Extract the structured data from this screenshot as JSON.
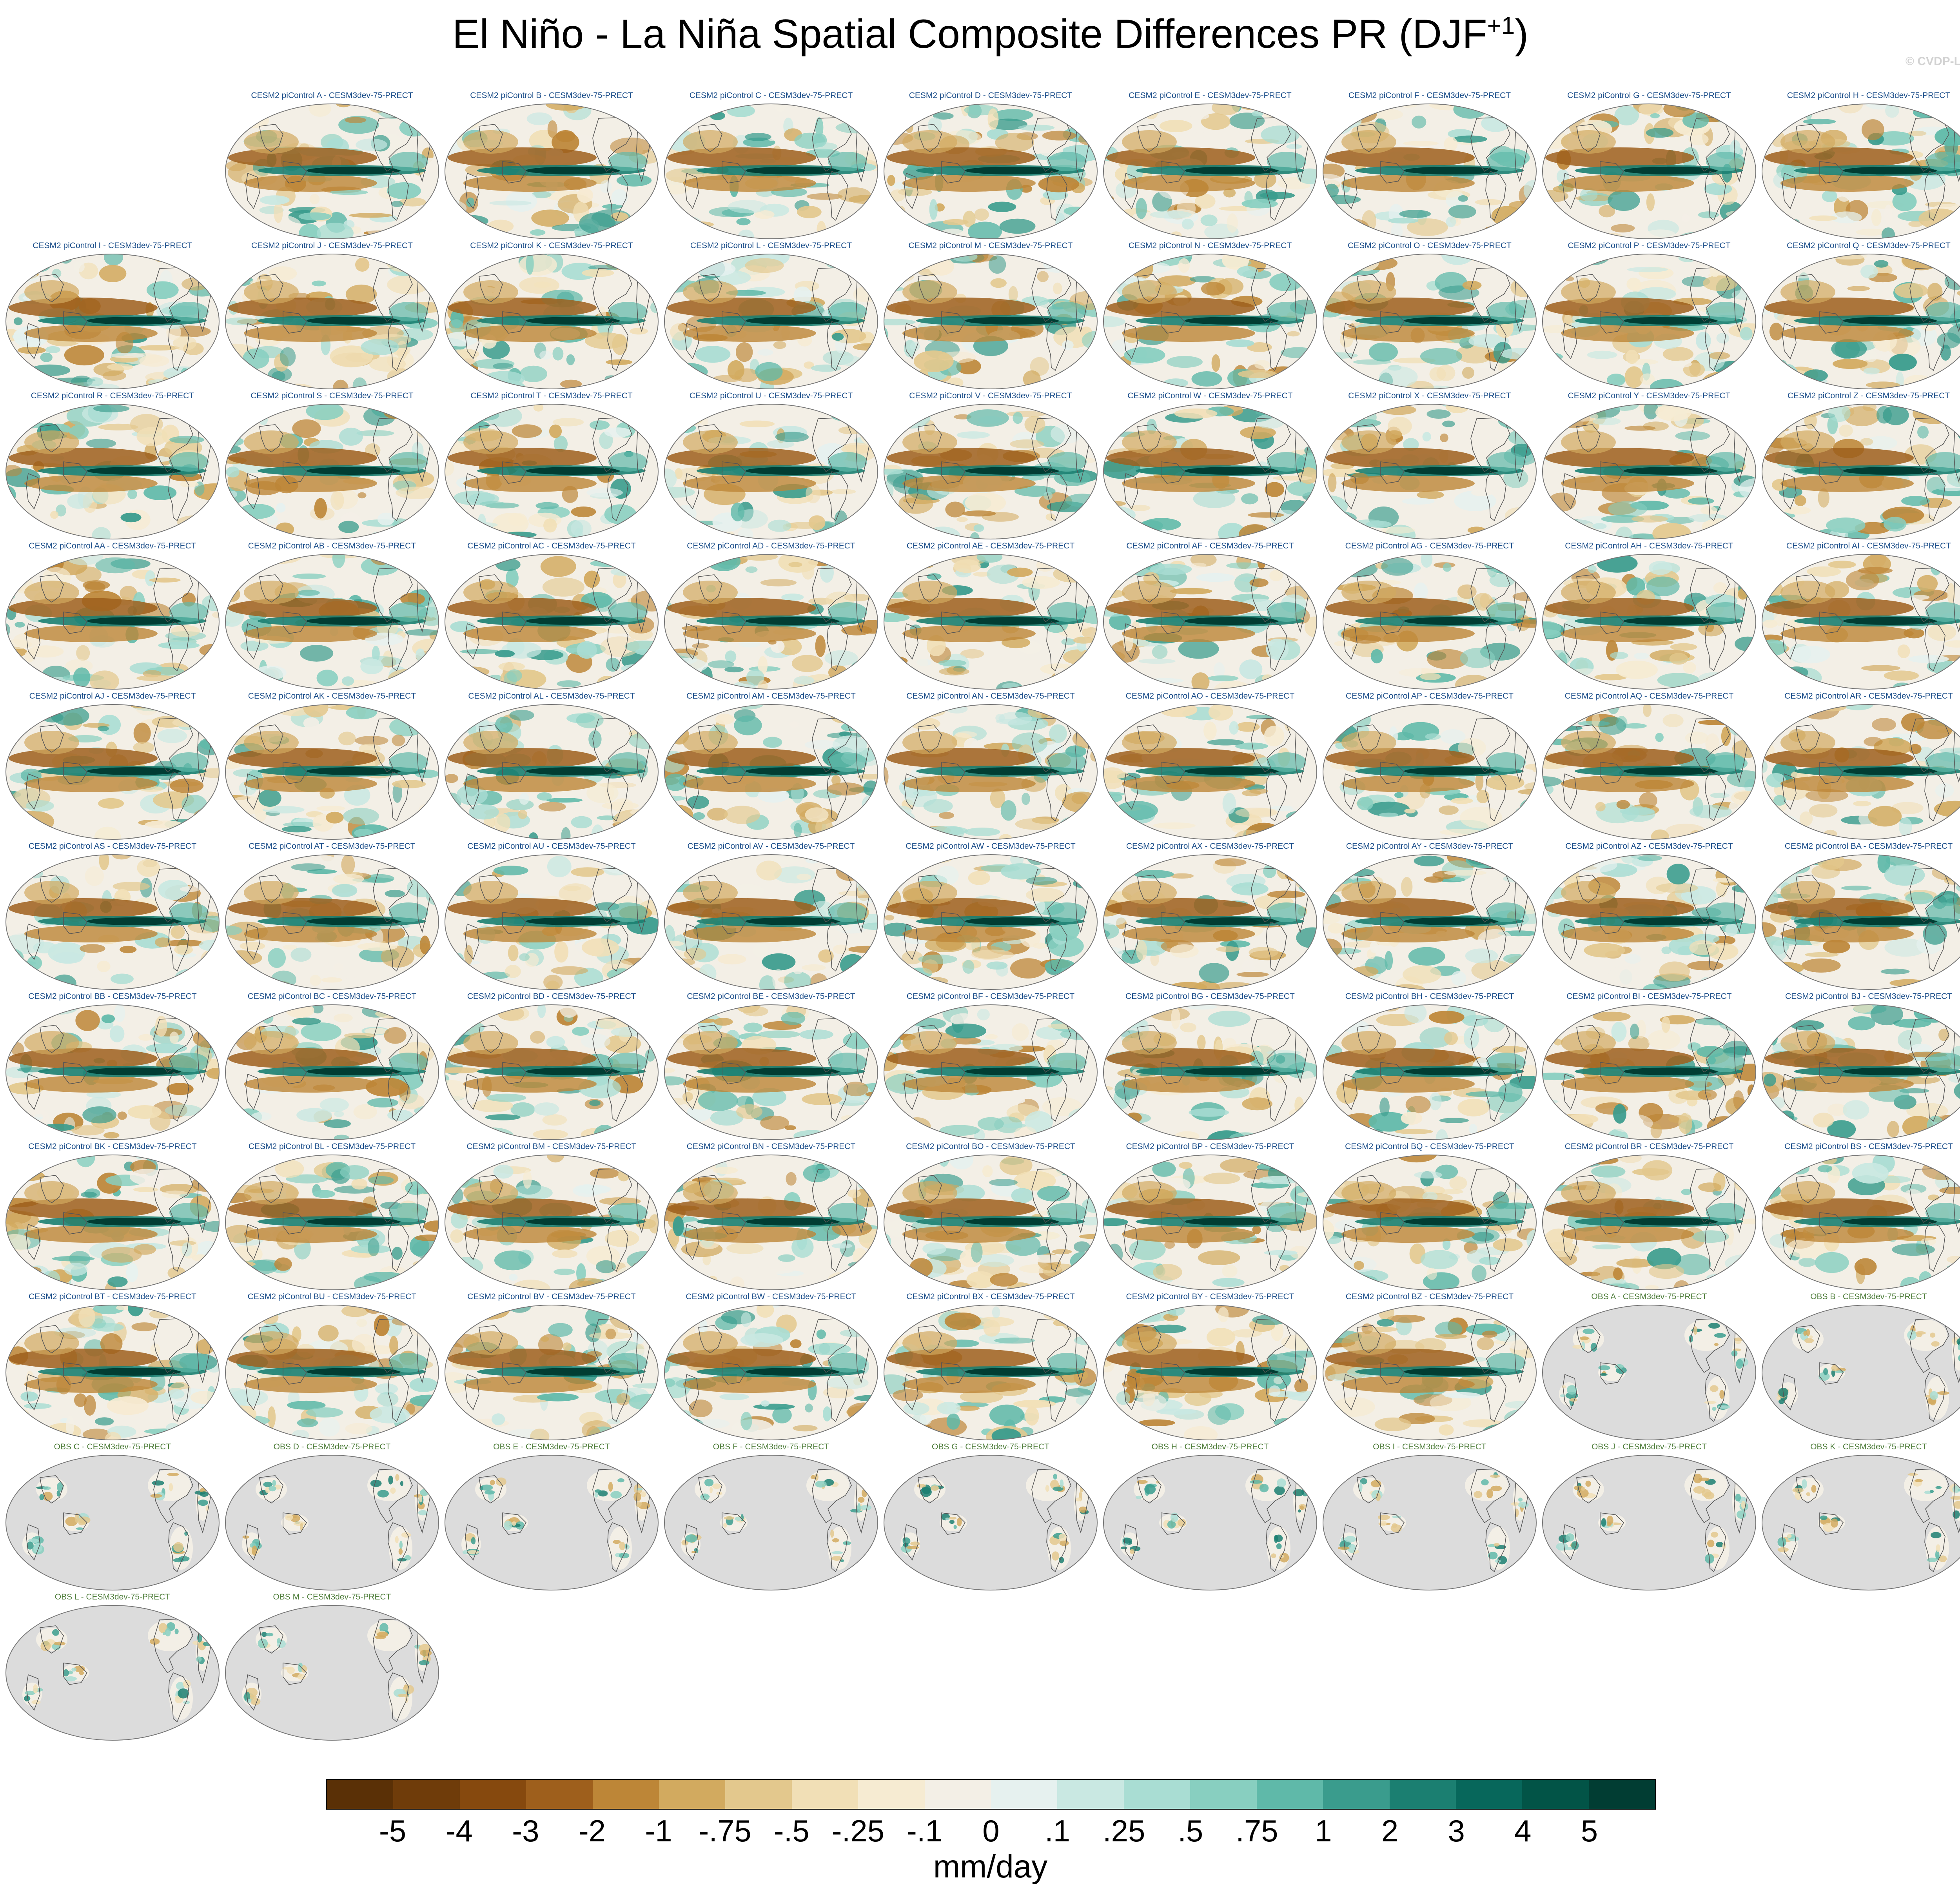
{
  "title_main": "El Niño - La Niña Spatial Composite Differences PR (DJF",
  "title_sup": "+1",
  "title_end": ")",
  "copyright": "© CVDP-LE",
  "panels": [
    {
      "label": "CESM2 piControl A - CESM3dev-75-PRECT",
      "kind": "model"
    },
    {
      "label": "CESM2 piControl B - CESM3dev-75-PRECT",
      "kind": "model"
    },
    {
      "label": "CESM2 piControl C - CESM3dev-75-PRECT",
      "kind": "model"
    },
    {
      "label": "CESM2 piControl D - CESM3dev-75-PRECT",
      "kind": "model"
    },
    {
      "label": "CESM2 piControl E - CESM3dev-75-PRECT",
      "kind": "model"
    },
    {
      "label": "CESM2 piControl F - CESM3dev-75-PRECT",
      "kind": "model"
    },
    {
      "label": "CESM2 piControl G - CESM3dev-75-PRECT",
      "kind": "model"
    },
    {
      "label": "CESM2 piControl H - CESM3dev-75-PRECT",
      "kind": "model"
    },
    {
      "label": "CESM2 piControl I - CESM3dev-75-PRECT",
      "kind": "model"
    },
    {
      "label": "CESM2 piControl J - CESM3dev-75-PRECT",
      "kind": "model"
    },
    {
      "label": "CESM2 piControl K - CESM3dev-75-PRECT",
      "kind": "model"
    },
    {
      "label": "CESM2 piControl L - CESM3dev-75-PRECT",
      "kind": "model"
    },
    {
      "label": "CESM2 piControl M - CESM3dev-75-PRECT",
      "kind": "model"
    },
    {
      "label": "CESM2 piControl N - CESM3dev-75-PRECT",
      "kind": "model"
    },
    {
      "label": "CESM2 piControl O - CESM3dev-75-PRECT",
      "kind": "model"
    },
    {
      "label": "CESM2 piControl P - CESM3dev-75-PRECT",
      "kind": "model"
    },
    {
      "label": "CESM2 piControl Q - CESM3dev-75-PRECT",
      "kind": "model"
    },
    {
      "label": "CESM2 piControl R - CESM3dev-75-PRECT",
      "kind": "model"
    },
    {
      "label": "CESM2 piControl S - CESM3dev-75-PRECT",
      "kind": "model"
    },
    {
      "label": "CESM2 piControl T - CESM3dev-75-PRECT",
      "kind": "model"
    },
    {
      "label": "CESM2 piControl U - CESM3dev-75-PRECT",
      "kind": "model"
    },
    {
      "label": "CESM2 piControl V - CESM3dev-75-PRECT",
      "kind": "model"
    },
    {
      "label": "CESM2 piControl W - CESM3dev-75-PRECT",
      "kind": "model"
    },
    {
      "label": "CESM2 piControl X - CESM3dev-75-PRECT",
      "kind": "model"
    },
    {
      "label": "CESM2 piControl Y - CESM3dev-75-PRECT",
      "kind": "model"
    },
    {
      "label": "CESM2 piControl Z - CESM3dev-75-PRECT",
      "kind": "model"
    },
    {
      "label": "CESM2 piControl AA - CESM3dev-75-PRECT",
      "kind": "model"
    },
    {
      "label": "CESM2 piControl AB - CESM3dev-75-PRECT",
      "kind": "model"
    },
    {
      "label": "CESM2 piControl AC - CESM3dev-75-PRECT",
      "kind": "model"
    },
    {
      "label": "CESM2 piControl AD - CESM3dev-75-PRECT",
      "kind": "model"
    },
    {
      "label": "CESM2 piControl AE - CESM3dev-75-PRECT",
      "kind": "model"
    },
    {
      "label": "CESM2 piControl AF - CESM3dev-75-PRECT",
      "kind": "model"
    },
    {
      "label": "CESM2 piControl AG - CESM3dev-75-PRECT",
      "kind": "model"
    },
    {
      "label": "CESM2 piControl AH - CESM3dev-75-PRECT",
      "kind": "model"
    },
    {
      "label": "CESM2 piControl AI - CESM3dev-75-PRECT",
      "kind": "model"
    },
    {
      "label": "CESM2 piControl AJ - CESM3dev-75-PRECT",
      "kind": "model"
    },
    {
      "label": "CESM2 piControl AK - CESM3dev-75-PRECT",
      "kind": "model"
    },
    {
      "label": "CESM2 piControl AL - CESM3dev-75-PRECT",
      "kind": "model"
    },
    {
      "label": "CESM2 piControl AM - CESM3dev-75-PRECT",
      "kind": "model"
    },
    {
      "label": "CESM2 piControl AN - CESM3dev-75-PRECT",
      "kind": "model"
    },
    {
      "label": "CESM2 piControl AO - CESM3dev-75-PRECT",
      "kind": "model"
    },
    {
      "label": "CESM2 piControl AP - CESM3dev-75-PRECT",
      "kind": "model"
    },
    {
      "label": "CESM2 piControl AQ - CESM3dev-75-PRECT",
      "kind": "model"
    },
    {
      "label": "CESM2 piControl AR - CESM3dev-75-PRECT",
      "kind": "model"
    },
    {
      "label": "CESM2 piControl AS - CESM3dev-75-PRECT",
      "kind": "model"
    },
    {
      "label": "CESM2 piControl AT - CESM3dev-75-PRECT",
      "kind": "model"
    },
    {
      "label": "CESM2 piControl AU - CESM3dev-75-PRECT",
      "kind": "model"
    },
    {
      "label": "CESM2 piControl AV - CESM3dev-75-PRECT",
      "kind": "model"
    },
    {
      "label": "CESM2 piControl AW - CESM3dev-75-PRECT",
      "kind": "model"
    },
    {
      "label": "CESM2 piControl AX - CESM3dev-75-PRECT",
      "kind": "model"
    },
    {
      "label": "CESM2 piControl AY - CESM3dev-75-PRECT",
      "kind": "model"
    },
    {
      "label": "CESM2 piControl AZ - CESM3dev-75-PRECT",
      "kind": "model"
    },
    {
      "label": "CESM2 piControl BA - CESM3dev-75-PRECT",
      "kind": "model"
    },
    {
      "label": "CESM2 piControl BB - CESM3dev-75-PRECT",
      "kind": "model"
    },
    {
      "label": "CESM2 piControl BC - CESM3dev-75-PRECT",
      "kind": "model"
    },
    {
      "label": "CESM2 piControl BD - CESM3dev-75-PRECT",
      "kind": "model"
    },
    {
      "label": "CESM2 piControl BE - CESM3dev-75-PRECT",
      "kind": "model"
    },
    {
      "label": "CESM2 piControl BF - CESM3dev-75-PRECT",
      "kind": "model"
    },
    {
      "label": "CESM2 piControl BG - CESM3dev-75-PRECT",
      "kind": "model"
    },
    {
      "label": "CESM2 piControl BH - CESM3dev-75-PRECT",
      "kind": "model"
    },
    {
      "label": "CESM2 piControl BI - CESM3dev-75-PRECT",
      "kind": "model"
    },
    {
      "label": "CESM2 piControl BJ - CESM3dev-75-PRECT",
      "kind": "model"
    },
    {
      "label": "CESM2 piControl BK - CESM3dev-75-PRECT",
      "kind": "model"
    },
    {
      "label": "CESM2 piControl BL - CESM3dev-75-PRECT",
      "kind": "model"
    },
    {
      "label": "CESM2 piControl BM - CESM3dev-75-PRECT",
      "kind": "model"
    },
    {
      "label": "CESM2 piControl BN - CESM3dev-75-PRECT",
      "kind": "model"
    },
    {
      "label": "CESM2 piControl BO - CESM3dev-75-PRECT",
      "kind": "model"
    },
    {
      "label": "CESM2 piControl BP - CESM3dev-75-PRECT",
      "kind": "model"
    },
    {
      "label": "CESM2 piControl BQ - CESM3dev-75-PRECT",
      "kind": "model"
    },
    {
      "label": "CESM2 piControl BR - CESM3dev-75-PRECT",
      "kind": "model"
    },
    {
      "label": "CESM2 piControl BS - CESM3dev-75-PRECT",
      "kind": "model"
    },
    {
      "label": "CESM2 piControl BT - CESM3dev-75-PRECT",
      "kind": "model"
    },
    {
      "label": "CESM2 piControl BU - CESM3dev-75-PRECT",
      "kind": "model"
    },
    {
      "label": "CESM2 piControl BV - CESM3dev-75-PRECT",
      "kind": "model"
    },
    {
      "label": "CESM2 piControl BW - CESM3dev-75-PRECT",
      "kind": "model"
    },
    {
      "label": "CESM2 piControl BX - CESM3dev-75-PRECT",
      "kind": "model"
    },
    {
      "label": "CESM2 piControl BY - CESM3dev-75-PRECT",
      "kind": "model"
    },
    {
      "label": "CESM2 piControl BZ - CESM3dev-75-PRECT",
      "kind": "model"
    },
    {
      "label": "OBS A - CESM3dev-75-PRECT",
      "kind": "obs"
    },
    {
      "label": "OBS B - CESM3dev-75-PRECT",
      "kind": "obs"
    },
    {
      "label": "OBS C - CESM3dev-75-PRECT",
      "kind": "obs"
    },
    {
      "label": "OBS D - CESM3dev-75-PRECT",
      "kind": "obs"
    },
    {
      "label": "OBS E - CESM3dev-75-PRECT",
      "kind": "obs"
    },
    {
      "label": "OBS F - CESM3dev-75-PRECT",
      "kind": "obs"
    },
    {
      "label": "OBS G - CESM3dev-75-PRECT",
      "kind": "obs"
    },
    {
      "label": "OBS H - CESM3dev-75-PRECT",
      "kind": "obs"
    },
    {
      "label": "OBS I - CESM3dev-75-PRECT",
      "kind": "obs"
    },
    {
      "label": "OBS J - CESM3dev-75-PRECT",
      "kind": "obs"
    },
    {
      "label": "OBS K - CESM3dev-75-PRECT",
      "kind": "obs"
    },
    {
      "label": "OBS L - CESM3dev-75-PRECT",
      "kind": "obs"
    },
    {
      "label": "OBS M - CESM3dev-75-PRECT",
      "kind": "obs"
    }
  ],
  "colorbar": {
    "units": "mm/day",
    "colors": [
      "#5a3006",
      "#6f3c0a",
      "#86490e",
      "#9e5f1c",
      "#bd8637",
      "#d2aa5f",
      "#e3c88d",
      "#f1dfb6",
      "#f6ebd2",
      "#f3efe6",
      "#e6f1ef",
      "#c9e8e2",
      "#a9ddd3",
      "#88cfc0",
      "#5fb9a9",
      "#3a9c8d",
      "#1b7f71",
      "#07675b",
      "#025447",
      "#013d33"
    ],
    "ticks": [
      "-5",
      "-4",
      "-3",
      "-2",
      "-1",
      "-.75",
      "-.5",
      "-.25",
      "-.1",
      "0",
      ".1",
      ".25",
      ".5",
      ".75",
      "1",
      "2",
      "3",
      "4",
      "5"
    ]
  },
  "style_colors": {
    "obs_background": "#dcdcdc",
    "coastline": "#555555",
    "map_border": "#777777"
  }
}
